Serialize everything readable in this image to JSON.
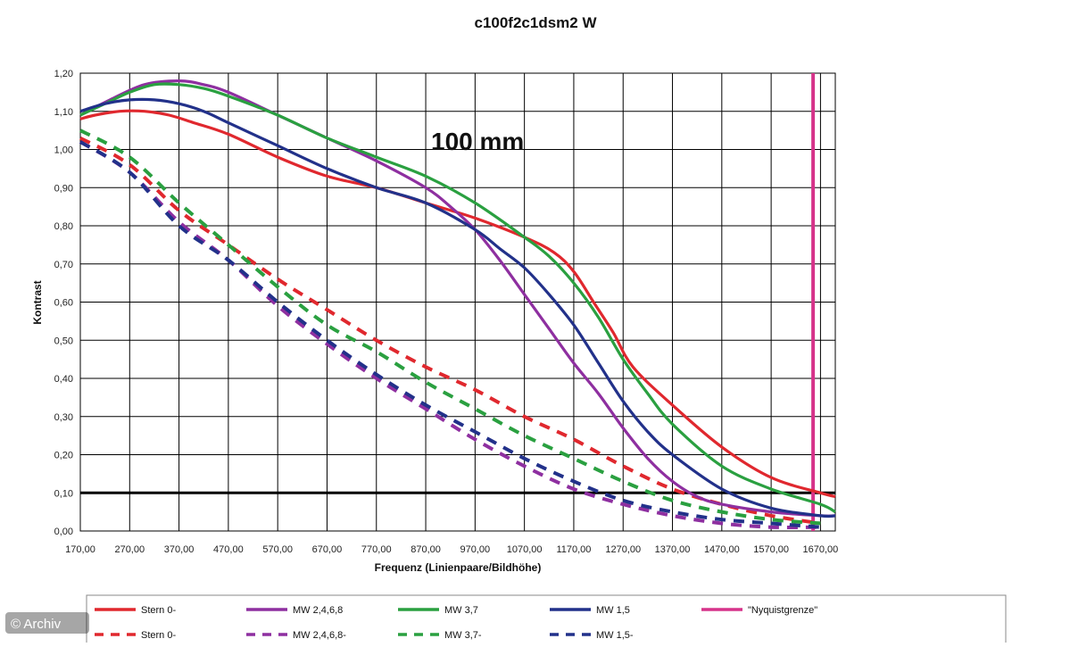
{
  "chart_data": {
    "type": "line",
    "title": "c100f2c1dsm2 W",
    "annotation": "100 mm",
    "xlabel": "Frequenz (Linienpaare/Bildhöhe)",
    "ylabel": "Kontrast",
    "xlim": [
      170,
      1700
    ],
    "ylim": [
      0,
      1.2
    ],
    "x_ticks": [
      "170,00",
      "270,00",
      "370,00",
      "470,00",
      "570,00",
      "670,00",
      "770,00",
      "870,00",
      "970,00",
      "1070,00",
      "1170,00",
      "1270,00",
      "1370,00",
      "1470,00",
      "1570,00",
      "1670,00"
    ],
    "y_ticks": [
      "0,00",
      "0,10",
      "0,20",
      "0,30",
      "0,40",
      "0,50",
      "0,60",
      "0,70",
      "0,80",
      "0,90",
      "1,00",
      "1,10",
      "1,20"
    ],
    "grid": true,
    "legend_position": "bottom",
    "reference_line": {
      "y": 0.1,
      "color": "#000000"
    },
    "nyquist_line": {
      "x": 1655,
      "color": "#d6338a"
    },
    "series": [
      {
        "name": "Stern 0-",
        "color": "#e0282e",
        "dash": false,
        "x": [
          170,
          200,
          250,
          300,
          350,
          400,
          470,
          570,
          670,
          770,
          870,
          970,
          1070,
          1130,
          1170,
          1210,
          1250,
          1290,
          1370,
          1470,
          1570,
          1670,
          1700
        ],
        "y": [
          1.08,
          1.09,
          1.1,
          1.1,
          1.09,
          1.07,
          1.04,
          0.98,
          0.93,
          0.9,
          0.86,
          0.82,
          0.77,
          0.73,
          0.68,
          0.6,
          0.52,
          0.43,
          0.33,
          0.22,
          0.14,
          0.1,
          0.09
        ]
      },
      {
        "name": "MW 2,4,6,8",
        "color": "#8e2fa0",
        "dash": false,
        "x": [
          170,
          230,
          300,
          370,
          420,
          470,
          570,
          670,
          770,
          870,
          920,
          970,
          1020,
          1070,
          1120,
          1170,
          1220,
          1270,
          1320,
          1370,
          1420,
          1470,
          1570,
          1670,
          1700
        ],
        "y": [
          1.09,
          1.13,
          1.17,
          1.18,
          1.17,
          1.15,
          1.09,
          1.03,
          0.97,
          0.9,
          0.85,
          0.79,
          0.71,
          0.62,
          0.53,
          0.44,
          0.36,
          0.27,
          0.19,
          0.13,
          0.09,
          0.07,
          0.05,
          0.04,
          0.04
        ]
      },
      {
        "name": "MW 3,7",
        "color": "#2aa040",
        "dash": false,
        "x": [
          170,
          220,
          270,
          320,
          370,
          420,
          470,
          570,
          670,
          770,
          870,
          970,
          1070,
          1120,
          1170,
          1220,
          1270,
          1320,
          1370,
          1470,
          1570,
          1670,
          1700
        ],
        "y": [
          1.09,
          1.12,
          1.15,
          1.17,
          1.17,
          1.16,
          1.14,
          1.09,
          1.03,
          0.98,
          0.93,
          0.86,
          0.77,
          0.72,
          0.65,
          0.56,
          0.45,
          0.36,
          0.28,
          0.17,
          0.11,
          0.07,
          0.05
        ]
      },
      {
        "name": "MW 1,5",
        "color": "#22318a",
        "dash": false,
        "x": [
          170,
          220,
          270,
          320,
          370,
          420,
          470,
          570,
          670,
          770,
          870,
          970,
          1020,
          1070,
          1120,
          1170,
          1220,
          1270,
          1320,
          1370,
          1470,
          1570,
          1670,
          1700
        ],
        "y": [
          1.1,
          1.12,
          1.13,
          1.13,
          1.12,
          1.1,
          1.07,
          1.01,
          0.95,
          0.9,
          0.86,
          0.79,
          0.74,
          0.69,
          0.62,
          0.54,
          0.44,
          0.34,
          0.26,
          0.2,
          0.11,
          0.06,
          0.04,
          0.04
        ]
      },
      {
        "name": "Stern 0-",
        "color": "#e0282e",
        "dash": true,
        "x": [
          170,
          270,
          370,
          470,
          570,
          670,
          770,
          870,
          970,
          1070,
          1170,
          1270,
          1370,
          1470,
          1570,
          1670
        ],
        "y": [
          1.03,
          0.96,
          0.84,
          0.75,
          0.66,
          0.58,
          0.5,
          0.43,
          0.37,
          0.3,
          0.24,
          0.17,
          0.11,
          0.07,
          0.04,
          0.02
        ]
      },
      {
        "name": "MW 2,4,6,8-",
        "color": "#8e2fa0",
        "dash": true,
        "x": [
          170,
          270,
          370,
          470,
          570,
          670,
          770,
          870,
          970,
          1070,
          1170,
          1270,
          1370,
          1470,
          1570,
          1670
        ],
        "y": [
          1.02,
          0.94,
          0.81,
          0.71,
          0.59,
          0.49,
          0.4,
          0.32,
          0.24,
          0.17,
          0.11,
          0.07,
          0.04,
          0.02,
          0.01,
          0.01
        ]
      },
      {
        "name": "MW 3,7-",
        "color": "#2aa040",
        "dash": true,
        "x": [
          170,
          270,
          370,
          470,
          570,
          670,
          770,
          870,
          970,
          1070,
          1170,
          1270,
          1370,
          1470,
          1570,
          1670
        ],
        "y": [
          1.05,
          0.98,
          0.86,
          0.75,
          0.64,
          0.54,
          0.47,
          0.39,
          0.32,
          0.25,
          0.19,
          0.13,
          0.08,
          0.05,
          0.03,
          0.02
        ]
      },
      {
        "name": "MW 1,5-",
        "color": "#22318a",
        "dash": true,
        "x": [
          170,
          270,
          370,
          470,
          570,
          670,
          770,
          870,
          970,
          1070,
          1170,
          1270,
          1370,
          1470,
          1570,
          1670
        ],
        "y": [
          1.02,
          0.94,
          0.8,
          0.71,
          0.6,
          0.5,
          0.41,
          0.33,
          0.26,
          0.19,
          0.13,
          0.08,
          0.05,
          0.03,
          0.02,
          0.01
        ]
      }
    ],
    "legend": [
      {
        "label": "Stern 0-",
        "color": "#e0282e",
        "dash": false
      },
      {
        "label": "MW 2,4,6,8",
        "color": "#8e2fa0",
        "dash": false
      },
      {
        "label": "MW 3,7",
        "color": "#2aa040",
        "dash": false
      },
      {
        "label": "MW 1,5",
        "color": "#22318a",
        "dash": false
      },
      {
        "label": "\"Nyquistgrenze\"",
        "color": "#d6338a",
        "dash": false
      },
      {
        "label": "Stern 0-",
        "color": "#e0282e",
        "dash": true
      },
      {
        "label": "MW 2,4,6,8-",
        "color": "#8e2fa0",
        "dash": true
      },
      {
        "label": "MW 3,7-",
        "color": "#2aa040",
        "dash": true
      },
      {
        "label": "MW 1,5-",
        "color": "#22318a",
        "dash": true
      }
    ]
  },
  "credit": "© Archiv"
}
